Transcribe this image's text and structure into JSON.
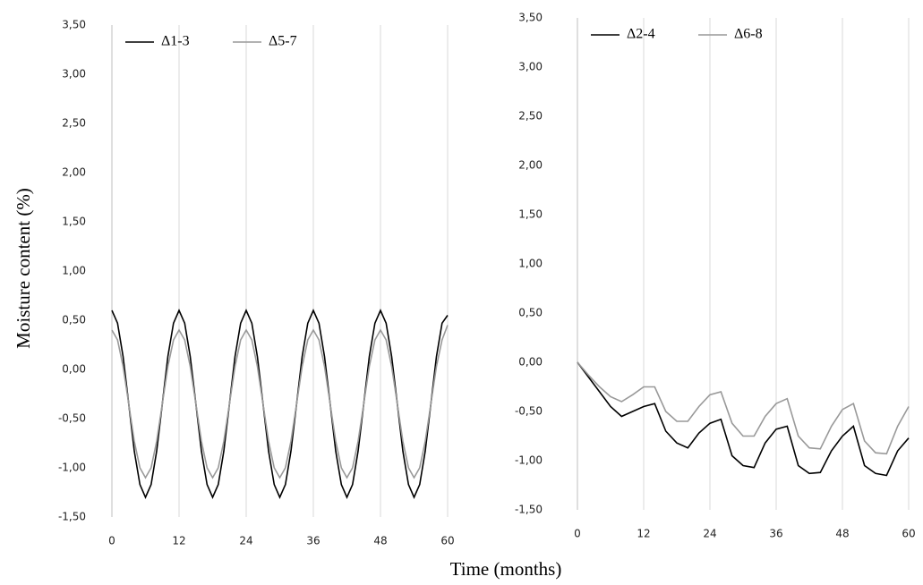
{
  "chart_data": [
    {
      "type": "line",
      "ylabel": "Moisture content (%)",
      "xlabel": "Time (months)",
      "x": [
        0,
        1,
        2,
        3,
        4,
        5,
        6,
        7,
        8,
        9,
        10,
        11,
        12,
        13,
        14,
        15,
        16,
        17,
        18,
        19,
        20,
        21,
        22,
        23,
        24,
        25,
        26,
        27,
        28,
        29,
        30,
        31,
        32,
        33,
        34,
        35,
        36,
        37,
        38,
        39,
        40,
        41,
        42,
        43,
        44,
        45,
        46,
        47,
        48,
        49,
        50,
        51,
        52,
        53,
        54,
        55,
        56,
        57,
        58,
        59,
        60
      ],
      "series": [
        {
          "name": "Δ1-3",
          "color": "#000000",
          "values": [
            0.6,
            0.47,
            0.13,
            -0.35,
            -0.83,
            -1.17,
            -1.3,
            -1.17,
            -0.83,
            -0.35,
            0.13,
            0.47,
            0.6,
            0.47,
            0.13,
            -0.35,
            -0.83,
            -1.17,
            -1.3,
            -1.17,
            -0.83,
            -0.35,
            0.13,
            0.47,
            0.6,
            0.47,
            0.13,
            -0.35,
            -0.83,
            -1.17,
            -1.3,
            -1.17,
            -0.83,
            -0.35,
            0.13,
            0.47,
            0.6,
            0.47,
            0.13,
            -0.35,
            -0.83,
            -1.17,
            -1.3,
            -1.17,
            -0.83,
            -0.35,
            0.13,
            0.47,
            0.6,
            0.47,
            0.13,
            -0.35,
            -0.83,
            -1.17,
            -1.3,
            -1.17,
            -0.83,
            -0.35,
            0.13,
            0.47,
            0.55
          ]
        },
        {
          "name": "Δ5-7",
          "color": "#999999",
          "values": [
            0.4,
            0.3,
            0.03,
            -0.35,
            -0.73,
            -1.0,
            -1.1,
            -1.0,
            -0.73,
            -0.35,
            0.03,
            0.3,
            0.4,
            0.3,
            0.03,
            -0.35,
            -0.73,
            -1.0,
            -1.1,
            -1.0,
            -0.73,
            -0.35,
            0.03,
            0.3,
            0.4,
            0.3,
            0.03,
            -0.35,
            -0.73,
            -1.0,
            -1.1,
            -1.0,
            -0.73,
            -0.35,
            0.03,
            0.3,
            0.4,
            0.3,
            0.03,
            -0.35,
            -0.73,
            -1.0,
            -1.1,
            -1.0,
            -0.73,
            -0.35,
            0.03,
            0.3,
            0.4,
            0.3,
            0.03,
            -0.35,
            -0.73,
            -1.0,
            -1.1,
            -1.0,
            -0.73,
            -0.35,
            0.03,
            0.3,
            0.45
          ]
        }
      ],
      "xlim": [
        0,
        60
      ],
      "xticks": [
        0,
        12,
        24,
        36,
        48,
        60
      ],
      "ylim": [
        -1.5,
        3.5
      ],
      "yticks": [
        {
          "value": -1.5,
          "label": "-1,50"
        },
        {
          "value": -1,
          "label": "-1,00"
        },
        {
          "value": -0.5,
          "label": "-0,50"
        },
        {
          "value": 0,
          "label": "0,00"
        },
        {
          "value": 0.5,
          "label": "0,50"
        },
        {
          "value": 1,
          "label": "1,00"
        },
        {
          "value": 1.5,
          "label": "1,50"
        },
        {
          "value": 2,
          "label": "2,00"
        },
        {
          "value": 2.5,
          "label": "2,50"
        },
        {
          "value": 3,
          "label": "3,00"
        },
        {
          "value": 3.5,
          "label": "3,50"
        }
      ],
      "grid": true,
      "legend": "top-left"
    },
    {
      "type": "line",
      "x": [
        0,
        2,
        4,
        6,
        8,
        10,
        12,
        14,
        16,
        18,
        20,
        22,
        24,
        26,
        28,
        30,
        32,
        34,
        36,
        38,
        40,
        42,
        44,
        46,
        48,
        50,
        52,
        54,
        56,
        58,
        60
      ],
      "series": [
        {
          "name": "Δ2-4",
          "color": "#000000",
          "values": [
            0,
            -0.15,
            -0.3,
            -0.45,
            -0.55,
            -0.5,
            -0.45,
            -0.42,
            -0.7,
            -0.82,
            -0.87,
            -0.72,
            -0.62,
            -0.58,
            -0.95,
            -1.05,
            -1.07,
            -0.82,
            -0.68,
            -0.65,
            -1.05,
            -1.13,
            -1.12,
            -0.9,
            -0.75,
            -0.65,
            -1.05,
            -1.13,
            -1.15,
            -0.9,
            -0.77
          ]
        },
        {
          "name": "Δ6-8",
          "color": "#999999",
          "values": [
            0,
            -0.13,
            -0.25,
            -0.35,
            -0.4,
            -0.33,
            -0.25,
            -0.25,
            -0.5,
            -0.6,
            -0.6,
            -0.45,
            -0.33,
            -0.3,
            -0.62,
            -0.75,
            -0.75,
            -0.55,
            -0.42,
            -0.37,
            -0.75,
            -0.87,
            -0.88,
            -0.65,
            -0.48,
            -0.42,
            -0.8,
            -0.92,
            -0.93,
            -0.65,
            -0.45
          ]
        }
      ],
      "xlim": [
        0,
        60
      ],
      "xticks": [
        0,
        12,
        24,
        36,
        48,
        60
      ],
      "ylim": [
        -1.5,
        3.5
      ],
      "yticks": [
        {
          "value": -1.5,
          "label": "-1,50"
        },
        {
          "value": -1,
          "label": "-1,00"
        },
        {
          "value": -0.5,
          "label": "-0,50"
        },
        {
          "value": 0,
          "label": "0,00"
        },
        {
          "value": 0.5,
          "label": "0,50"
        },
        {
          "value": 1,
          "label": "1,00"
        },
        {
          "value": 1.5,
          "label": "1,50"
        },
        {
          "value": 2,
          "label": "2,00"
        },
        {
          "value": 2.5,
          "label": "2,50"
        },
        {
          "value": 3,
          "label": "3,00"
        },
        {
          "value": 3.5,
          "label": "3,50"
        }
      ],
      "grid": true,
      "legend": "top-left"
    }
  ]
}
